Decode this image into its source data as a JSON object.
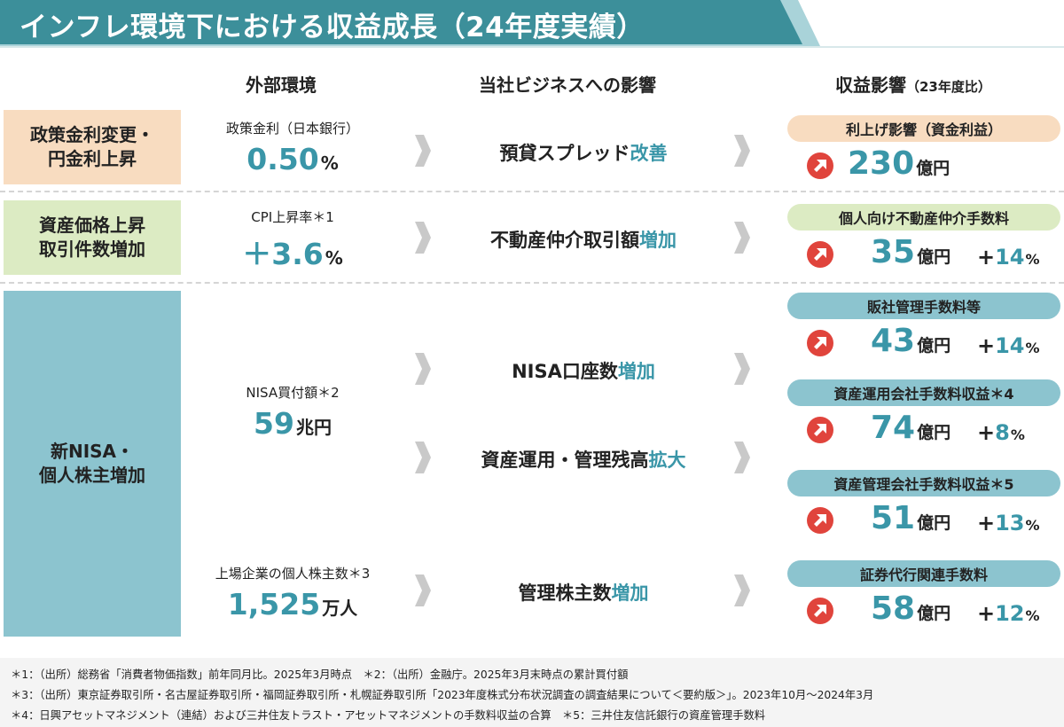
{
  "title": "インフレ環境下における収益成長（24年度実績）",
  "headers": {
    "environment": "外部環境",
    "business": "当社ビジネスへの影響",
    "revenue": "収益影響",
    "revenue_note": "（23年度比）"
  },
  "categories": [
    {
      "line1": "政策金利変更・",
      "line2": "円金利上昇"
    },
    {
      "line1": "資産価格上昇",
      "line2": "取引件数増加"
    },
    {
      "line1": "新NISA・",
      "line2": "個人株主増加"
    }
  ],
  "environment": [
    {
      "label": "政策金利（日本銀行）",
      "value": "0.50",
      "unit": "%"
    },
    {
      "label": "CPI上昇率＊1",
      "value": "＋3.6",
      "unit": "%"
    },
    {
      "label": "NISA買付額＊2",
      "value": "59",
      "unit": "兆円"
    },
    {
      "label": "上場企業の個人株主数＊3",
      "value": "1,525",
      "unit": "万人"
    }
  ],
  "impacts": [
    {
      "text": "預貸スプレッド",
      "highlight": "改善"
    },
    {
      "text": "不動産仲介取引額",
      "highlight": "増加"
    },
    {
      "text": "NISA口座数",
      "highlight": "増加"
    },
    {
      "text": "資産運用・管理残高",
      "highlight": "拡大"
    },
    {
      "text": "管理株主数",
      "highlight": "増加"
    }
  ],
  "revenues": [
    {
      "label": "利上げ影響（資金利益）",
      "amount": "230",
      "unit": "億円",
      "sign": "",
      "pct": "",
      "pct_unit": ""
    },
    {
      "label": "個人向け不動産仲介手数料",
      "amount": "35",
      "unit": "億円",
      "sign": "+",
      "pct": "14",
      "pct_unit": "%"
    },
    {
      "label": "販社管理手数料等",
      "amount": "43",
      "unit": "億円",
      "sign": "+",
      "pct": "14",
      "pct_unit": "%"
    },
    {
      "label": "資産運用会社手数料収益＊4",
      "amount": "74",
      "unit": "億円",
      "sign": "+",
      "pct": "8",
      "pct_unit": "%"
    },
    {
      "label": "資産管理会社手数料収益＊5",
      "amount": "51",
      "unit": "億円",
      "sign": "+",
      "pct": "13",
      "pct_unit": "%"
    },
    {
      "label": "証券代行関連手数料",
      "amount": "58",
      "unit": "億円",
      "sign": "+",
      "pct": "12",
      "pct_unit": "%"
    }
  ],
  "icons": {
    "arrow": "up-right-arrow-icon",
    "chevron": "chevron-right-icon"
  },
  "colors": {
    "accent": "#3a96a8",
    "banner": "#3c8f9a",
    "peach": "#f8dcc0",
    "green": "#dcebc3",
    "teal": "#8cc4cf",
    "arrow_red": "#e0443c"
  },
  "footnotes": [
    "＊1：（出所）総務省「消費者物価指数」前年同月比。2025年3月時点　＊2：（出所）金融庁。2025年3月末時点の累計買付額",
    "＊3：（出所）東京証券取引所・名古屋証券取引所・福岡証券取引所・札幌証券取引所「2023年度株式分布状況調査の調査結果について＜要約版＞」。2023年10月〜2024年3月",
    "＊4：日興アセットマネジメント（連結）および三井住友トラスト・アセットマネジメントの手数料収益の合算　＊5：三井住友信託銀行の資産管理手数料"
  ]
}
